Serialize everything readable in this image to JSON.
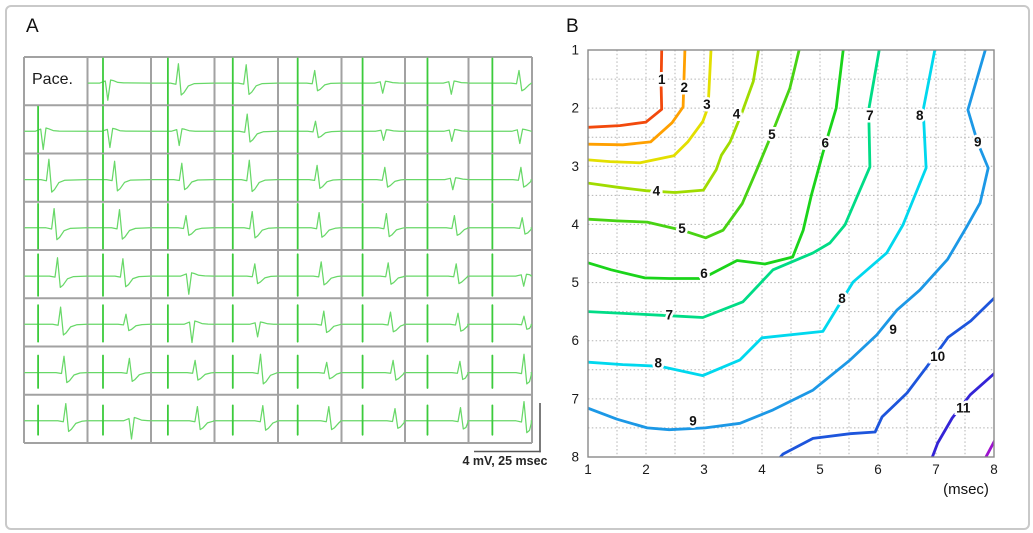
{
  "chart_data": [
    {
      "type": "line",
      "panel_label": "A",
      "description": "8x8 grid of paced bipolar electrograms",
      "pace_label": "Pace.",
      "scale_bar_label": "4 mV, 25 msec",
      "scale_bar": {
        "mv": 4,
        "msec": 25
      },
      "rows": 8,
      "cols": 8,
      "trace_color": "#68d868",
      "spike_color": "#3ccb3c",
      "grid_color": "#a2a2a2",
      "activation_times_msec": [
        [
          0,
          0.7,
          2.9,
          4.0,
          5.4,
          6.6,
          8.0,
          9.1
        ],
        [
          0.8,
          1.5,
          3.2,
          4.4,
          5.7,
          6.9,
          8.2,
          9.4
        ],
        [
          3.0,
          3.3,
          4.2,
          5.2,
          6.3,
          7.4,
          8.6,
          9.8
        ],
        [
          5.0,
          5.2,
          5.8,
          6.3,
          7.1,
          8.0,
          9.2,
          10.3
        ],
        [
          6.3,
          6.5,
          6.9,
          7.3,
          7.9,
          8.7,
          9.9,
          10.9
        ],
        [
          7.5,
          7.7,
          8.1,
          8.4,
          8.9,
          9.6,
          10.6,
          11.5
        ],
        [
          8.8,
          9.0,
          9.3,
          9.5,
          10.0,
          10.6,
          11.3,
          12.1
        ],
        [
          9.5,
          9.8,
          10.2,
          10.4,
          10.8,
          11.3,
          11.9,
          12.6
        ]
      ],
      "polarities": [
        [
          0,
          -1,
          1,
          1,
          1,
          -1,
          -1,
          1
        ],
        [
          -1,
          -1,
          -1,
          1,
          1,
          -1,
          -1,
          -1
        ],
        [
          1,
          1,
          1,
          1,
          1,
          1,
          -1,
          1
        ],
        [
          1,
          1,
          1,
          1,
          1,
          1,
          1,
          1
        ],
        [
          1,
          1,
          -1,
          1,
          1,
          1,
          1,
          -1
        ],
        [
          1,
          1,
          -1,
          -1,
          1,
          1,
          1,
          1
        ],
        [
          1,
          1,
          1,
          1,
          1,
          1,
          1,
          1
        ],
        [
          1,
          -1,
          1,
          1,
          1,
          1,
          1,
          1
        ]
      ],
      "amplitudes": [
        [
          0,
          0.85,
          0.95,
          0.9,
          0.62,
          0.5,
          0.55,
          0.62
        ],
        [
          0.9,
          0.8,
          0.7,
          0.85,
          0.5,
          0.45,
          0.5,
          0.6
        ],
        [
          1.0,
          0.9,
          0.8,
          0.95,
          0.7,
          0.6,
          0.5,
          0.6
        ],
        [
          0.95,
          0.9,
          0.6,
          0.8,
          0.75,
          0.7,
          0.6,
          0.5
        ],
        [
          0.9,
          0.85,
          0.9,
          0.6,
          0.7,
          0.65,
          0.6,
          0.5
        ],
        [
          0.85,
          0.5,
          0.9,
          0.62,
          0.65,
          0.6,
          0.55,
          0.4
        ],
        [
          0.8,
          0.7,
          0.6,
          0.9,
          0.5,
          0.6,
          0.55,
          0.9
        ],
        [
          0.85,
          0.9,
          0.7,
          0.75,
          0.7,
          0.6,
          0.65,
          0.95
        ]
      ],
      "spike_heights": [
        0.96,
        0.96,
        0.96,
        0.9,
        0.82,
        0.72,
        0.64,
        0.58
      ]
    },
    {
      "type": "heatmap",
      "panel_label": "B",
      "description": "activation-time isochrone contour map",
      "x_axis_label": "(msec)",
      "x_ticks": [
        "1",
        "2",
        "3",
        "4",
        "5",
        "6",
        "7",
        "8"
      ],
      "y_ticks": [
        "1",
        "2",
        "3",
        "4",
        "5",
        "6",
        "7",
        "8"
      ],
      "x_range": [
        1,
        8
      ],
      "y_range": [
        1,
        8
      ],
      "grid_step": 0.5,
      "grid_color": "#b3b3b3",
      "border_color": "#8a8a8a",
      "contours": [
        {
          "value": "1",
          "color": "#f2490c",
          "points": [
            [
              2.27,
              1.0
            ],
            [
              2.26,
              1.6
            ],
            [
              2.27,
              2.02
            ],
            [
              2.0,
              2.24
            ],
            [
              1.55,
              2.3
            ],
            [
              1.0,
              2.33
            ]
          ],
          "labels": [
            [
              2.27,
              1.5
            ]
          ]
        },
        {
          "value": "2",
          "color": "#ffa000",
          "points": [
            [
              2.67,
              1.0
            ],
            [
              2.64,
              1.98
            ],
            [
              2.45,
              2.25
            ],
            [
              2.08,
              2.58
            ],
            [
              1.6,
              2.63
            ],
            [
              1.0,
              2.62
            ]
          ],
          "labels": [
            [
              2.66,
              1.64
            ]
          ]
        },
        {
          "value": "3",
          "color": "#e3df00",
          "points": [
            [
              3.12,
              1.0
            ],
            [
              3.07,
              1.98
            ],
            [
              2.98,
              2.23
            ],
            [
              2.72,
              2.58
            ],
            [
              2.48,
              2.82
            ],
            [
              1.9,
              2.94
            ],
            [
              1.38,
              2.92
            ],
            [
              1.0,
              2.89
            ]
          ],
          "labels": [
            [
              3.05,
              1.93
            ]
          ]
        },
        {
          "value": "4",
          "color": "#a0dc00",
          "points": [
            [
              3.94,
              1.0
            ],
            [
              3.85,
              1.54
            ],
            [
              3.65,
              2.09
            ],
            [
              3.45,
              2.58
            ],
            [
              3.3,
              2.81
            ],
            [
              3.21,
              3.06
            ],
            [
              2.99,
              3.41
            ],
            [
              2.5,
              3.45
            ],
            [
              2.0,
              3.42
            ],
            [
              1.5,
              3.36
            ],
            [
              1.0,
              3.29
            ]
          ],
          "labels": [
            [
              3.56,
              2.1
            ],
            [
              2.18,
              3.42
            ]
          ]
        },
        {
          "value": "5",
          "color": "#48d313",
          "points": [
            [
              4.64,
              1.0
            ],
            [
              4.48,
              1.66
            ],
            [
              4.17,
              2.44
            ],
            [
              3.91,
              3.06
            ],
            [
              3.66,
              3.64
            ],
            [
              3.33,
              4.1
            ],
            [
              3.03,
              4.23
            ],
            [
              2.62,
              4.1
            ],
            [
              2.02,
              3.96
            ],
            [
              1.5,
              3.94
            ],
            [
              1.0,
              3.91
            ]
          ],
          "labels": [
            [
              4.17,
              2.45
            ],
            [
              2.62,
              4.07
            ]
          ]
        },
        {
          "value": "6",
          "color": "#1ad41a",
          "points": [
            [
              5.4,
              1.0
            ],
            [
              5.28,
              2.0
            ],
            [
              5.05,
              2.77
            ],
            [
              4.85,
              3.5
            ],
            [
              4.71,
              4.1
            ],
            [
              4.53,
              4.56
            ],
            [
              4.05,
              4.68
            ],
            [
              3.57,
              4.62
            ],
            [
              2.97,
              4.93
            ],
            [
              2.4,
              4.93
            ],
            [
              1.98,
              4.92
            ],
            [
              1.4,
              4.78
            ],
            [
              1.0,
              4.66
            ]
          ],
          "labels": [
            [
              5.09,
              2.6
            ],
            [
              3.0,
              4.84
            ]
          ]
        },
        {
          "value": "7",
          "color": "#00dc86",
          "points": [
            [
              6.02,
              1.0
            ],
            [
              5.84,
              2.03
            ],
            [
              5.86,
              3.01
            ],
            [
              5.43,
              4.01
            ],
            [
              5.17,
              4.32
            ],
            [
              4.88,
              4.49
            ],
            [
              4.19,
              4.78
            ],
            [
              3.67,
              5.33
            ],
            [
              2.98,
              5.6
            ],
            [
              2.4,
              5.57
            ],
            [
              1.84,
              5.54
            ],
            [
              1.0,
              5.5
            ]
          ],
          "labels": [
            [
              5.86,
              2.12
            ],
            [
              2.4,
              5.55
            ]
          ]
        },
        {
          "value": "8",
          "color": "#00d8ee",
          "points": [
            [
              6.98,
              1.0
            ],
            [
              6.78,
              2.03
            ],
            [
              6.83,
              3.03
            ],
            [
              6.43,
              4.01
            ],
            [
              6.15,
              4.49
            ],
            [
              5.57,
              4.99
            ],
            [
              5.05,
              5.84
            ],
            [
              4.0,
              5.95
            ],
            [
              3.62,
              6.33
            ],
            [
              2.98,
              6.6
            ],
            [
              2.24,
              6.44
            ],
            [
              1.6,
              6.41
            ],
            [
              1.0,
              6.37
            ]
          ],
          "labels": [
            [
              6.72,
              2.12
            ],
            [
              5.38,
              5.27
            ],
            [
              2.21,
              6.38
            ]
          ]
        },
        {
          "value": "9",
          "color": "#1c98e6",
          "points": [
            [
              7.85,
              1.0
            ],
            [
              7.55,
              2.03
            ],
            [
              7.72,
              2.6
            ],
            [
              7.9,
              3.03
            ],
            [
              7.76,
              3.63
            ],
            [
              7.53,
              4.04
            ],
            [
              7.2,
              4.6
            ],
            [
              6.72,
              5.13
            ],
            [
              6.33,
              5.47
            ],
            [
              5.98,
              5.9
            ],
            [
              5.52,
              6.33
            ],
            [
              4.88,
              6.85
            ],
            [
              4.19,
              7.19
            ],
            [
              3.62,
              7.42
            ],
            [
              3.02,
              7.5
            ],
            [
              2.4,
              7.53
            ],
            [
              2.02,
              7.5
            ],
            [
              1.5,
              7.35
            ],
            [
              1.0,
              7.16
            ]
          ],
          "labels": [
            [
              7.72,
              2.58
            ],
            [
              6.26,
              5.8
            ],
            [
              2.81,
              7.38
            ]
          ]
        },
        {
          "value": "10",
          "color": "#1d55dc",
          "points": [
            [
              8.02,
              5.25
            ],
            [
              7.6,
              5.66
            ],
            [
              7.21,
              5.94
            ],
            [
              6.84,
              6.45
            ],
            [
              6.5,
              6.9
            ],
            [
              6.07,
              7.31
            ],
            [
              5.95,
              7.57
            ],
            [
              5.52,
              7.6
            ],
            [
              4.88,
              7.68
            ],
            [
              4.36,
              7.95
            ],
            [
              4.3,
              8.02
            ]
          ],
          "labels": [
            [
              7.03,
              6.27
            ]
          ]
        },
        {
          "value": "11",
          "color": "#3424d6",
          "points": [
            [
              8.02,
              6.55
            ],
            [
              7.59,
              6.93
            ],
            [
              7.28,
              7.33
            ],
            [
              7.03,
              7.76
            ],
            [
              6.93,
              8.02
            ]
          ],
          "labels": [
            [
              7.47,
              7.15
            ]
          ]
        },
        {
          "value": "12",
          "color": "#9c13ce",
          "points": [
            [
              8.02,
              7.7
            ],
            [
              7.85,
              8.02
            ]
          ],
          "labels": []
        }
      ]
    }
  ]
}
